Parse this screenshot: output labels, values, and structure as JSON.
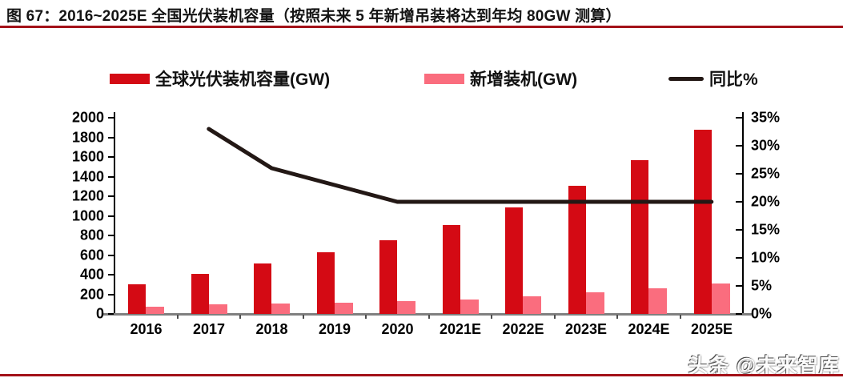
{
  "title": {
    "text": "图 67：2016~2025E 全国光伏装机容量（按照未来 5 年新增吊装将达到年均 80GW 测算）"
  },
  "legend": [
    {
      "label": "全球光伏装机容量(GW)",
      "color": "#d40a14",
      "swatch": "bar"
    },
    {
      "label": "新增装机(GW)",
      "color": "#fa6d7e",
      "swatch": "bar"
    },
    {
      "label": "同比%",
      "color": "#231815",
      "swatch": "line"
    }
  ],
  "watermark": "头条 @未来智库",
  "chart_data": {
    "type": "bar",
    "subtype": "combo-bar-line",
    "title": "2016~2025E 全国光伏装机容量",
    "categories": [
      "2016",
      "2017",
      "2018",
      "2019",
      "2020",
      "2021E",
      "2022E",
      "2023E",
      "2024E",
      "2025E"
    ],
    "series": [
      {
        "name": "全球光伏装机容量(GW)",
        "type": "bar",
        "axis": "left",
        "color": "#d40a14",
        "values": [
          306,
          405,
          512,
          627,
          754,
          905,
          1086,
          1303,
          1564,
          1877
        ]
      },
      {
        "name": "新增装机(GW)",
        "type": "bar",
        "axis": "left",
        "color": "#fa6d7e",
        "values": [
          76,
          99,
          107,
          115,
          127,
          151,
          181,
          217,
          261,
          313
        ]
      },
      {
        "name": "同比%",
        "type": "line",
        "axis": "right",
        "color": "#231815",
        "values": [
          null,
          33,
          26,
          23,
          20,
          20,
          20,
          20,
          20,
          20
        ]
      }
    ],
    "left_axis": {
      "min": 0,
      "max": 2000,
      "step": 200,
      "ticks": [
        "2000",
        "1800",
        "1600",
        "1400",
        "1200",
        "1000",
        "800",
        "600",
        "400",
        "200",
        "0"
      ]
    },
    "right_axis": {
      "min": 0,
      "max": 35,
      "step": 5,
      "ticks": [
        "35%",
        "30%",
        "25%",
        "20%",
        "15%",
        "10%",
        "5%",
        "0%"
      ]
    },
    "legend_position": "top",
    "grid": false
  }
}
